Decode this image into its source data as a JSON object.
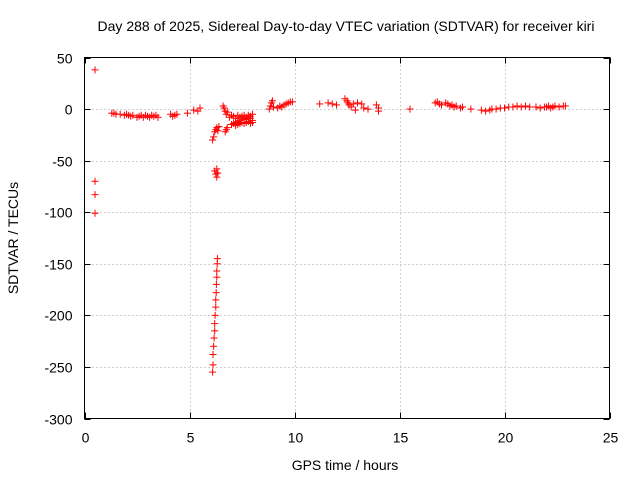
{
  "chart_data": {
    "type": "scatter",
    "title": "Day 288 of 2025, Sidereal Day-to-day VTEC variation (SDTVAR) for receiver kiri",
    "xlabel": "GPS time / hours",
    "ylabel": "SDTVAR / TECUs",
    "xlim": [
      0,
      25
    ],
    "ylim": [
      -300,
      50
    ],
    "xticks": [
      0,
      5,
      10,
      15,
      20,
      25
    ],
    "yticks": [
      50,
      0,
      -50,
      -100,
      -150,
      -200,
      -250,
      -300
    ],
    "grid": true,
    "marker": "+",
    "color": "#ff0000",
    "series": [
      {
        "points": [
          [
            0.5,
            38
          ],
          [
            0.5,
            -70
          ],
          [
            0.5,
            -83
          ],
          [
            0.5,
            -101
          ],
          [
            1.3,
            -4
          ],
          [
            1.4,
            -4
          ],
          [
            1.5,
            -5
          ],
          [
            1.7,
            -5
          ],
          [
            1.9,
            -6
          ],
          [
            2.0,
            -5
          ],
          [
            2.1,
            -6
          ],
          [
            2.2,
            -7
          ],
          [
            2.3,
            -6
          ],
          [
            2.5,
            -8
          ],
          [
            2.6,
            -7
          ],
          [
            2.7,
            -6
          ],
          [
            2.8,
            -8
          ],
          [
            2.9,
            -6
          ],
          [
            3.0,
            -7
          ],
          [
            3.1,
            -8
          ],
          [
            3.2,
            -6
          ],
          [
            3.3,
            -7
          ],
          [
            3.4,
            -6
          ],
          [
            3.5,
            -8
          ],
          [
            4.1,
            -5
          ],
          [
            4.2,
            -7
          ],
          [
            4.3,
            -6
          ],
          [
            4.4,
            -5
          ],
          [
            4.9,
            -4
          ],
          [
            5.2,
            -1
          ],
          [
            5.4,
            -2
          ],
          [
            5.5,
            1
          ],
          [
            6.1,
            -30
          ],
          [
            6.15,
            -27
          ],
          [
            6.2,
            -22
          ],
          [
            6.25,
            -20
          ],
          [
            6.3,
            -18
          ],
          [
            6.35,
            -21
          ],
          [
            6.4,
            -17
          ],
          [
            6.2,
            -60
          ],
          [
            6.25,
            -63
          ],
          [
            6.3,
            -66
          ],
          [
            6.35,
            -62
          ],
          [
            6.3,
            -58
          ],
          [
            6.1,
            -255
          ],
          [
            6.12,
            -248
          ],
          [
            6.12,
            -238
          ],
          [
            6.15,
            -230
          ],
          [
            6.17,
            -222
          ],
          [
            6.2,
            -215
          ],
          [
            6.2,
            -208
          ],
          [
            6.22,
            -200
          ],
          [
            6.25,
            -192
          ],
          [
            6.25,
            -185
          ],
          [
            6.27,
            -178
          ],
          [
            6.28,
            -170
          ],
          [
            6.3,
            -163
          ],
          [
            6.3,
            -157
          ],
          [
            6.32,
            -150
          ],
          [
            6.33,
            -145
          ],
          [
            6.6,
            3
          ],
          [
            6.65,
            1
          ],
          [
            6.7,
            -2
          ],
          [
            6.75,
            -5
          ],
          [
            6.8,
            -3
          ],
          [
            6.7,
            -22
          ],
          [
            6.75,
            -20
          ],
          [
            6.8,
            -18
          ],
          [
            6.9,
            -8
          ],
          [
            7.0,
            -6
          ],
          [
            7.1,
            -7
          ],
          [
            7.2,
            -9
          ],
          [
            7.3,
            -6
          ],
          [
            7.4,
            -8
          ],
          [
            7.5,
            -7
          ],
          [
            7.6,
            -6
          ],
          [
            7.7,
            -8
          ],
          [
            7.8,
            -6
          ],
          [
            7.9,
            -7
          ],
          [
            8.0,
            -5
          ],
          [
            7.0,
            -15
          ],
          [
            7.1,
            -14
          ],
          [
            7.2,
            -13
          ],
          [
            7.3,
            -12
          ],
          [
            7.4,
            -11
          ],
          [
            7.5,
            -10
          ],
          [
            7.6,
            -9
          ],
          [
            7.7,
            -10
          ],
          [
            7.8,
            -8
          ],
          [
            7.9,
            -9
          ],
          [
            8.0,
            -11
          ],
          [
            7.2,
            -16
          ],
          [
            7.3,
            -15
          ],
          [
            7.4,
            -14
          ],
          [
            7.5,
            -13
          ],
          [
            7.6,
            -14
          ],
          [
            7.7,
            -13
          ],
          [
            7.8,
            -12
          ],
          [
            7.9,
            -14
          ],
          [
            8.0,
            -13
          ],
          [
            8.8,
            0
          ],
          [
            8.85,
            3
          ],
          [
            8.9,
            6
          ],
          [
            8.95,
            8
          ],
          [
            9.0,
            2
          ],
          [
            9.2,
            1
          ],
          [
            9.3,
            3
          ],
          [
            9.4,
            2
          ],
          [
            9.5,
            4
          ],
          [
            9.6,
            5
          ],
          [
            9.7,
            6
          ],
          [
            9.8,
            7
          ],
          [
            9.9,
            7
          ],
          [
            11.2,
            5
          ],
          [
            11.6,
            6
          ],
          [
            11.8,
            5
          ],
          [
            12.0,
            4
          ],
          [
            12.4,
            10
          ],
          [
            12.5,
            8
          ],
          [
            12.55,
            6
          ],
          [
            12.6,
            4
          ],
          [
            12.7,
            2
          ],
          [
            12.8,
            5
          ],
          [
            12.9,
            -1
          ],
          [
            13.0,
            6
          ],
          [
            13.2,
            5
          ],
          [
            13.3,
            1
          ],
          [
            13.5,
            0
          ],
          [
            13.9,
            4
          ],
          [
            14.0,
            1
          ],
          [
            14.0,
            -2
          ],
          [
            15.5,
            0
          ],
          [
            16.7,
            6
          ],
          [
            16.8,
            7
          ],
          [
            16.9,
            5
          ],
          [
            17.0,
            4
          ],
          [
            17.2,
            6
          ],
          [
            17.3,
            5
          ],
          [
            17.4,
            3
          ],
          [
            17.5,
            4
          ],
          [
            17.6,
            2
          ],
          [
            17.7,
            3
          ],
          [
            17.9,
            1
          ],
          [
            18.0,
            2
          ],
          [
            18.4,
            0
          ],
          [
            18.9,
            -1
          ],
          [
            19.1,
            -2
          ],
          [
            19.3,
            -1
          ],
          [
            19.4,
            0
          ],
          [
            19.6,
            0
          ],
          [
            19.8,
            1
          ],
          [
            20.0,
            1
          ],
          [
            20.2,
            2
          ],
          [
            20.4,
            2
          ],
          [
            20.6,
            3
          ],
          [
            20.8,
            2
          ],
          [
            21.0,
            3
          ],
          [
            21.2,
            2
          ],
          [
            21.5,
            2
          ],
          [
            21.7,
            1
          ],
          [
            21.9,
            2
          ],
          [
            22.0,
            2
          ],
          [
            22.1,
            3
          ],
          [
            22.2,
            1
          ],
          [
            22.3,
            2
          ],
          [
            22.4,
            3
          ],
          [
            22.6,
            2
          ],
          [
            22.8,
            3
          ],
          [
            22.9,
            3
          ]
        ]
      }
    ]
  }
}
